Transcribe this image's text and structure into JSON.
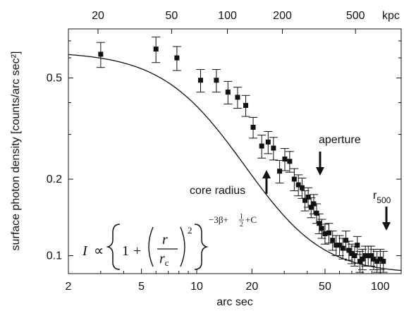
{
  "chart_data": {
    "type": "scatter",
    "xlabel": "arc sec",
    "ylabel": "surface photon density   [counts/arc sec²]",
    "x_scale": "log",
    "y_scale": "log",
    "xlim": [
      2,
      130
    ],
    "ylim": [
      0.085,
      0.78
    ],
    "x_ticks": [
      2,
      5,
      10,
      20,
      50,
      100
    ],
    "y_ticks": [
      0.1,
      0.2,
      0.5
    ],
    "top_axis": {
      "label": "kpc",
      "ticks": [
        20,
        50,
        100,
        200,
        500
      ],
      "tick_positions_arcsec": [
        2.9,
        7.3,
        14.7,
        29.3,
        73.3
      ]
    },
    "grid": false,
    "series": [
      {
        "type": "errorbar",
        "x": [
          3.0,
          6.0,
          7.8,
          10.5,
          12.8,
          14.8,
          16.7,
          18.5,
          20.3,
          22.6,
          24.5,
          26.2,
          28.3,
          30.2,
          32.1,
          34.0,
          35.8,
          37.5,
          38.9,
          40.5,
          42.0,
          43.4,
          45.0,
          46.5,
          48.0,
          50.0,
          52.5,
          55.0,
          57.5,
          60.0,
          62.5,
          65.0,
          67.5,
          70.0,
          72.5,
          75.0,
          77.5,
          80.0,
          83.0,
          86.0,
          89.0,
          92.0,
          96.0,
          100.0,
          104.0
        ],
        "y": [
          0.62,
          0.65,
          0.6,
          0.49,
          0.49,
          0.44,
          0.42,
          0.39,
          0.32,
          0.27,
          0.28,
          0.265,
          0.215,
          0.24,
          0.235,
          0.2,
          0.19,
          0.185,
          0.165,
          0.17,
          0.155,
          0.16,
          0.147,
          0.134,
          0.128,
          0.122,
          0.123,
          0.115,
          0.11,
          0.11,
          0.107,
          0.115,
          0.105,
          0.102,
          0.1,
          0.11,
          0.095,
          0.097,
          0.1,
          0.1,
          0.1,
          0.097,
          0.095,
          0.097,
          0.095
        ],
        "yerr": [
          0.07,
          0.075,
          0.065,
          0.05,
          0.05,
          0.045,
          0.04,
          0.037,
          0.03,
          0.028,
          0.028,
          0.027,
          0.022,
          0.024,
          0.022,
          0.02,
          0.018,
          0.017,
          0.015,
          0.015,
          0.014,
          0.014,
          0.013,
          0.012,
          0.011,
          0.011,
          0.011,
          0.01,
          0.01,
          0.01,
          0.01,
          0.01,
          0.009,
          0.009,
          0.009,
          0.009,
          0.009,
          0.009,
          0.009,
          0.009,
          0.009,
          0.009,
          0.009,
          0.009,
          0.009
        ]
      },
      {
        "type": "line",
        "model": "beta",
        "r_c": 12.0,
        "beta": 0.545,
        "C": 0.0,
        "norm": 0.635,
        "baseline": 0.085
      }
    ],
    "annotations": [
      {
        "text": "core radius",
        "arrow": "up",
        "x": 24.0
      },
      {
        "text": "aperture",
        "arrow": "down",
        "x": 47.0
      },
      {
        "text": "r",
        "subscript": "500",
        "arrow": "down",
        "x": 108.0
      }
    ],
    "formula": {
      "lhs": "I",
      "prop": "∝",
      "one": "1",
      "plus": "+",
      "num": "r",
      "den": "r",
      "den_sub": "c",
      "outer_exp": "2",
      "exponent": "−3β+½+C",
      "exp_part1": "−3β+",
      "exp_num": "1",
      "exp_den": "2",
      "exp_part2": "+C"
    }
  }
}
